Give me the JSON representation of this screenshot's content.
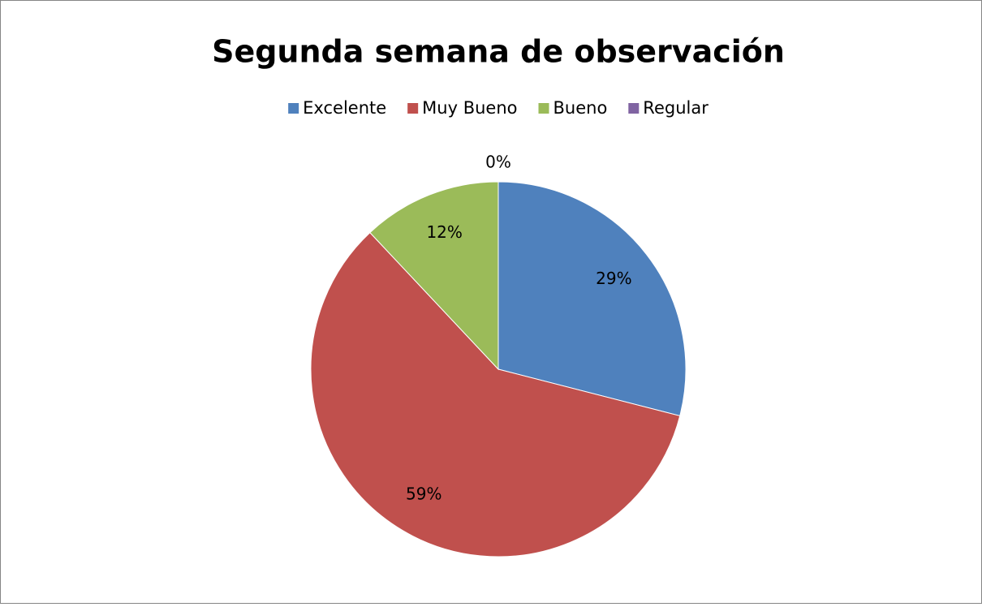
{
  "chart_data": {
    "type": "pie",
    "title": "Segunda semana de observación",
    "categories": [
      "Excelente",
      "Muy Bueno",
      "Bueno",
      "Regular"
    ],
    "values": [
      29,
      59,
      12,
      0
    ],
    "value_labels": [
      "29%",
      "59%",
      "12%",
      "0%"
    ],
    "colors": [
      "#4f81bd",
      "#c0504d",
      "#9bbb59",
      "#8064a2"
    ],
    "legend": "top"
  }
}
